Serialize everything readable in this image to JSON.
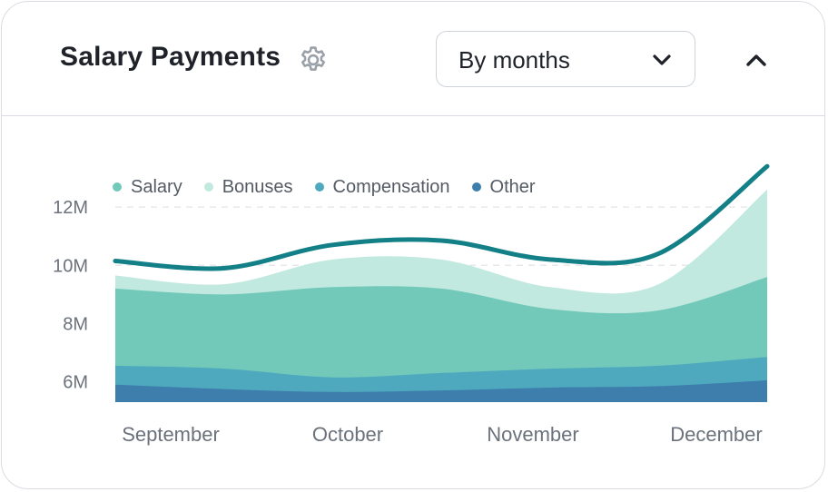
{
  "header": {
    "title": "Salary Payments",
    "period_select": {
      "value": "By months"
    }
  },
  "icons": {
    "settings": "gear-icon",
    "dropdown": "chevron-down-icon",
    "collapse": "chevron-up-icon"
  },
  "colors": {
    "salary": "#72c9ba",
    "bonuses": "#c2e9df",
    "compensation": "#4fa9be",
    "other": "#3d7ead",
    "total_line": "#137f86",
    "gear": "#9aa0a8"
  },
  "chart_data": {
    "type": "area",
    "stacked": true,
    "categories": [
      "September",
      "October",
      "November",
      "December"
    ],
    "ylim": [
      5.3,
      13.5
    ],
    "yticks": [
      6,
      8,
      10,
      12
    ],
    "ytick_labels": [
      "6M",
      "8M",
      "10M",
      "12M"
    ],
    "legend_position": "top-left",
    "grid": true,
    "x": [
      0,
      0.5,
      1,
      1.5,
      2,
      2.5,
      3
    ],
    "series": [
      {
        "name": "Other",
        "color_key": "other",
        "cumulative": [
          5.9,
          5.75,
          5.65,
          5.7,
          5.8,
          5.85,
          6.05
        ]
      },
      {
        "name": "Compensation",
        "color_key": "compensation",
        "cumulative": [
          6.55,
          6.45,
          6.15,
          6.3,
          6.45,
          6.55,
          6.85
        ]
      },
      {
        "name": "Salary",
        "color_key": "salary",
        "cumulative": [
          9.2,
          9.0,
          9.25,
          9.2,
          8.5,
          8.45,
          9.6
        ]
      },
      {
        "name": "Bonuses",
        "color_key": "bonuses",
        "cumulative": [
          9.65,
          9.35,
          10.2,
          10.2,
          9.25,
          9.35,
          12.6
        ]
      }
    ],
    "total_line": [
      10.15,
      9.9,
      10.7,
      10.85,
      10.2,
      10.4,
      13.4
    ]
  }
}
